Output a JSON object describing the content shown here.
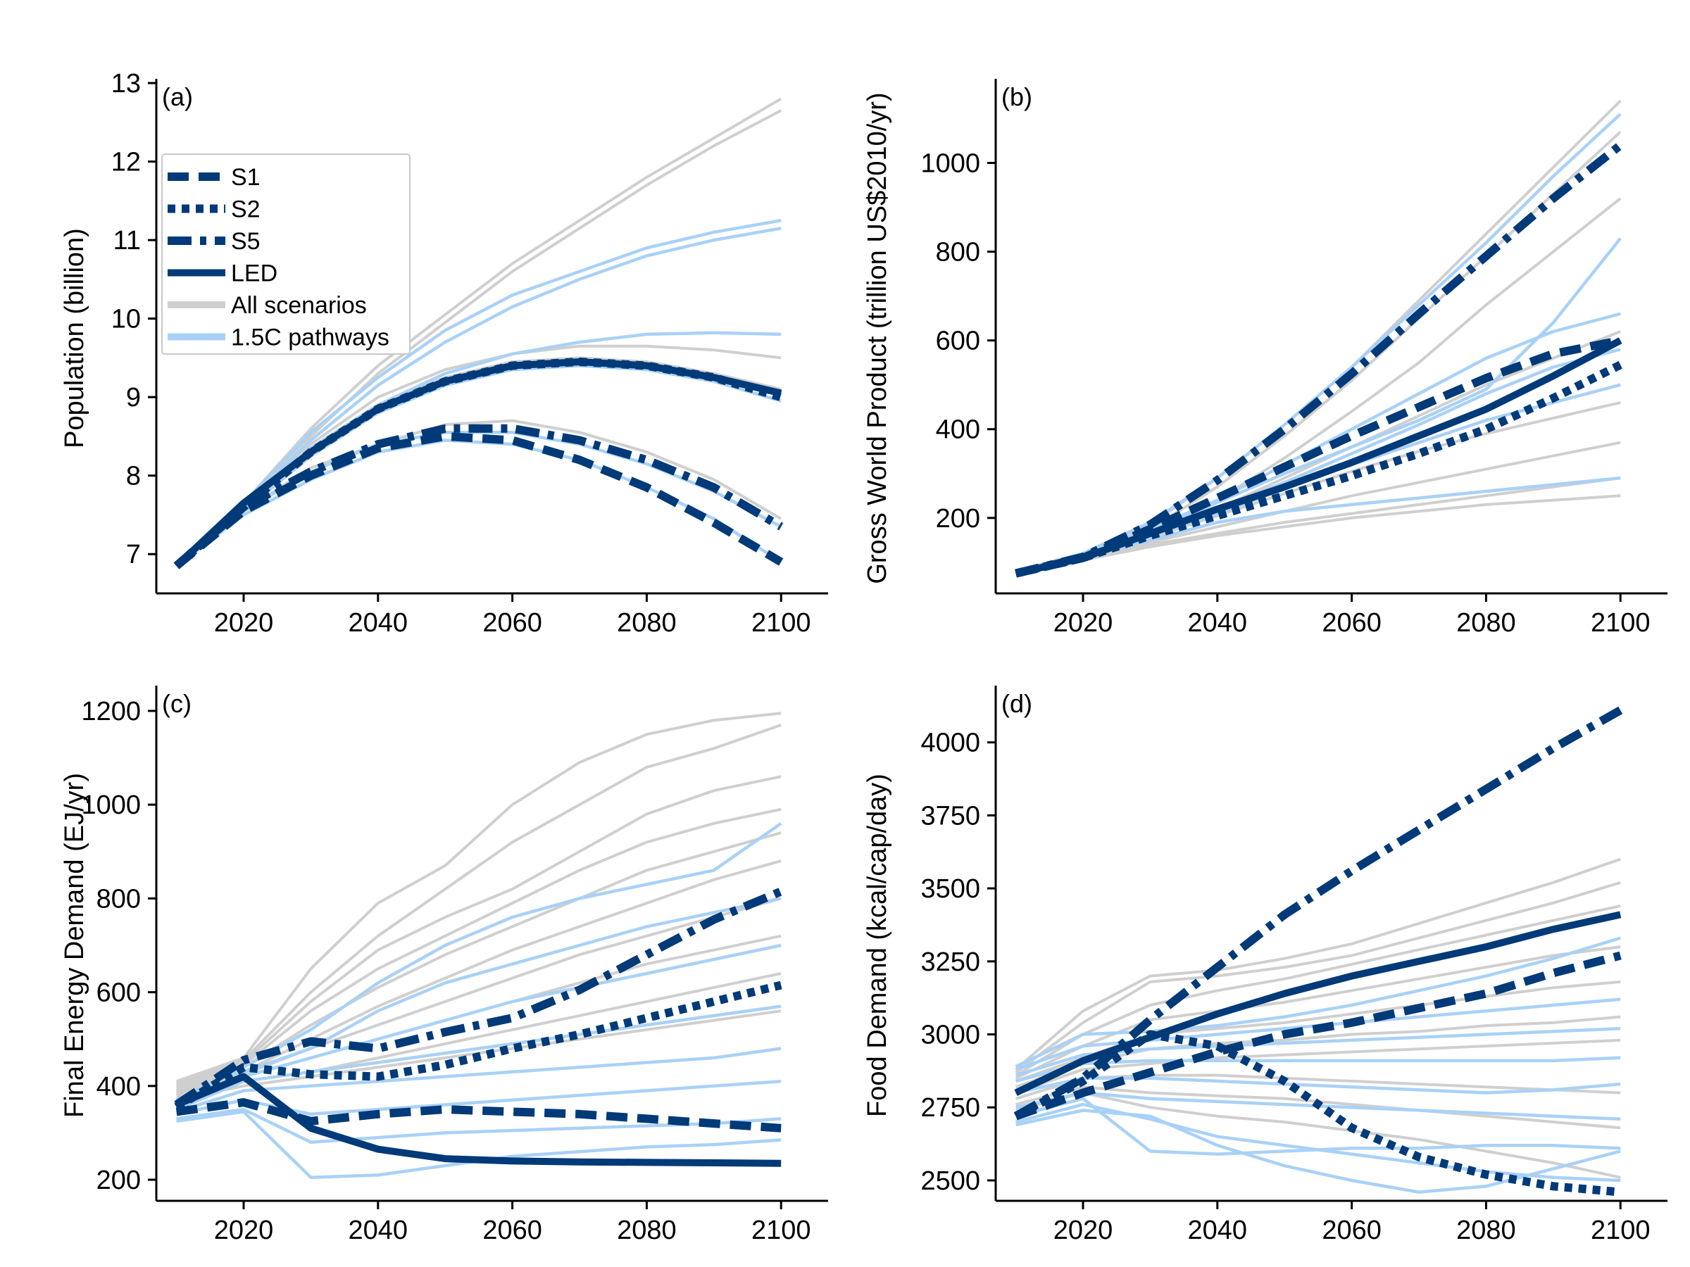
{
  "colors": {
    "grey": "#cfcfcf",
    "light_blue": "#a9d1f7",
    "navy": "#003a78"
  },
  "legend": [
    {
      "label": "S1",
      "style": "dashed"
    },
    {
      "label": "S2",
      "style": "dotted"
    },
    {
      "label": "S5",
      "style": "dashdot"
    },
    {
      "label": "LED",
      "style": "solid"
    },
    {
      "label": "All scenarios",
      "style": "grey"
    },
    {
      "label": "1.5C pathways",
      "style": "lightblue"
    }
  ],
  "chart_data": [
    {
      "type": "line",
      "panel_label": "(a)",
      "ylabel": "Population (billion)",
      "xlim": [
        2007,
        2107
      ],
      "ylim": [
        6.5,
        13.0
      ],
      "xticks": [
        2020,
        2040,
        2060,
        2080,
        2100
      ],
      "yticks": [
        7,
        8,
        9,
        10,
        11,
        12,
        13
      ],
      "x": [
        2010,
        2020,
        2030,
        2040,
        2050,
        2060,
        2070,
        2080,
        2090,
        2100
      ],
      "grey_series": [
        [
          6.85,
          7.65,
          8.6,
          9.4,
          10.05,
          10.7,
          11.25,
          11.8,
          12.3,
          12.8
        ],
        [
          6.85,
          7.6,
          8.5,
          9.3,
          9.95,
          10.6,
          11.15,
          11.7,
          12.2,
          12.65
        ],
        [
          6.85,
          7.6,
          8.4,
          9.0,
          9.35,
          9.55,
          9.65,
          9.65,
          9.6,
          9.5
        ],
        [
          6.85,
          7.6,
          8.35,
          8.9,
          9.25,
          9.45,
          9.5,
          9.45,
          9.3,
          9.1
        ],
        [
          6.85,
          7.55,
          8.1,
          8.4,
          8.65,
          8.7,
          8.55,
          8.3,
          7.95,
          7.45
        ]
      ],
      "blue_series": [
        [
          6.85,
          7.65,
          8.55,
          9.25,
          9.85,
          10.3,
          10.6,
          10.9,
          11.1,
          11.25
        ],
        [
          6.85,
          7.6,
          8.45,
          9.15,
          9.7,
          10.15,
          10.5,
          10.8,
          11.0,
          11.15
        ],
        [
          6.85,
          7.6,
          8.35,
          8.9,
          9.3,
          9.55,
          9.7,
          9.8,
          9.82,
          9.8
        ],
        [
          6.85,
          7.55,
          8.25,
          8.8,
          9.15,
          9.35,
          9.4,
          9.35,
          9.2,
          8.95
        ],
        [
          6.85,
          7.55,
          8.05,
          8.4,
          8.55,
          8.55,
          8.4,
          8.15,
          7.8,
          7.35
        ],
        [
          6.85,
          7.5,
          7.95,
          8.3,
          8.45,
          8.4,
          8.2,
          7.85,
          7.45,
          6.9
        ]
      ],
      "scenarios": [
        {
          "name": "S1",
          "style": "dashed",
          "values": [
            6.85,
            7.55,
            8.0,
            8.35,
            8.5,
            8.45,
            8.2,
            7.85,
            7.4,
            6.9
          ]
        },
        {
          "name": "S2",
          "style": "dotted",
          "values": [
            6.85,
            7.6,
            8.3,
            8.85,
            9.2,
            9.4,
            9.45,
            9.4,
            9.25,
            9.0
          ]
        },
        {
          "name": "S5",
          "style": "dashdot",
          "values": [
            6.85,
            7.6,
            8.05,
            8.4,
            8.6,
            8.6,
            8.45,
            8.2,
            7.85,
            7.35
          ]
        },
        {
          "name": "LED",
          "style": "solid",
          "values": [
            6.85,
            7.65,
            8.3,
            8.85,
            9.2,
            9.4,
            9.45,
            9.4,
            9.25,
            9.05
          ]
        }
      ]
    },
    {
      "type": "line",
      "panel_label": "(b)",
      "ylabel": "Gross World Product (trillion US$2010/yr)",
      "xlim": [
        2007,
        2107
      ],
      "ylim": [
        30,
        1180
      ],
      "xticks": [
        2020,
        2040,
        2060,
        2080,
        2100
      ],
      "yticks": [
        200,
        400,
        600,
        800,
        1000
      ],
      "x": [
        2010,
        2020,
        2030,
        2040,
        2050,
        2060,
        2070,
        2080,
        2090,
        2100
      ],
      "grey_series": [
        [
          75,
          115,
          185,
          290,
          410,
          540,
          690,
          840,
          990,
          1140
        ],
        [
          75,
          112,
          175,
          270,
          385,
          510,
          650,
          790,
          930,
          1070
        ],
        [
          75,
          110,
          165,
          240,
          335,
          440,
          550,
          680,
          800,
          920
        ],
        [
          75,
          110,
          160,
          220,
          290,
          360,
          430,
          500,
          560,
          620
        ],
        [
          75,
          110,
          155,
          205,
          255,
          305,
          350,
          390,
          425,
          460
        ],
        [
          75,
          108,
          145,
          180,
          215,
          250,
          280,
          310,
          340,
          370
        ],
        [
          75,
          105,
          140,
          165,
          190,
          210,
          230,
          250,
          270,
          290
        ],
        [
          75,
          105,
          135,
          160,
          180,
          200,
          215,
          230,
          240,
          250
        ]
      ],
      "blue_series": [
        [
          80,
          120,
          190,
          290,
          410,
          540,
          680,
          820,
          970,
          1110
        ],
        [
          80,
          115,
          170,
          235,
          300,
          360,
          420,
          490,
          640,
          830
        ],
        [
          80,
          115,
          175,
          240,
          320,
          400,
          480,
          560,
          620,
          660
        ],
        [
          80,
          112,
          160,
          210,
          265,
          320,
          370,
          420,
          460,
          500
        ],
        [
          80,
          110,
          150,
          190,
          215,
          230,
          245,
          260,
          275,
          290
        ],
        [
          80,
          112,
          165,
          220,
          280,
          345,
          410,
          480,
          540,
          580
        ]
      ],
      "scenarios": [
        {
          "name": "S1",
          "style": "dashed",
          "values": [
            75,
            110,
            175,
            245,
            315,
            385,
            450,
            515,
            570,
            600
          ]
        },
        {
          "name": "S2",
          "style": "dotted",
          "values": [
            75,
            110,
            160,
            205,
            250,
            295,
            345,
            400,
            470,
            545
          ]
        },
        {
          "name": "S5",
          "style": "dashdot",
          "values": [
            75,
            112,
            185,
            285,
            400,
            525,
            660,
            790,
            920,
            1040
          ]
        },
        {
          "name": "LED",
          "style": "solid",
          "values": [
            75,
            110,
            165,
            220,
            270,
            325,
            385,
            445,
            520,
            600
          ]
        }
      ]
    },
    {
      "type": "line",
      "panel_label": "(c)",
      "ylabel": "Final Energy Demand (EJ/yr)",
      "xlim": [
        2007,
        2107
      ],
      "ylim": [
        155,
        1245
      ],
      "xticks": [
        2020,
        2040,
        2060,
        2080,
        2100
      ],
      "yticks": [
        200,
        400,
        600,
        800,
        1000,
        1200
      ],
      "x": [
        2010,
        2020,
        2030,
        2040,
        2050,
        2060,
        2070,
        2080,
        2090,
        2100
      ],
      "grey_series": [
        [
          410,
          460,
          650,
          790,
          870,
          1000,
          1090,
          1150,
          1180,
          1195
        ],
        [
          405,
          455,
          600,
          720,
          820,
          920,
          1000,
          1080,
          1120,
          1170
        ],
        [
          400,
          450,
          580,
          690,
          760,
          820,
          900,
          980,
          1030,
          1060
        ],
        [
          395,
          445,
          560,
          650,
          720,
          790,
          860,
          920,
          960,
          990
        ],
        [
          390,
          440,
          530,
          610,
          680,
          740,
          800,
          860,
          900,
          940
        ],
        [
          390,
          430,
          500,
          570,
          630,
          690,
          740,
          790,
          840,
          880
        ],
        [
          385,
          425,
          480,
          530,
          580,
          630,
          680,
          720,
          760,
          800
        ],
        [
          380,
          420,
          460,
          500,
          540,
          580,
          620,
          660,
          690,
          720
        ],
        [
          375,
          410,
          430,
          460,
          490,
          520,
          550,
          580,
          610,
          640
        ],
        [
          370,
          400,
          420,
          440,
          460,
          480,
          500,
          520,
          540,
          560
        ]
      ],
      "blue_series": [
        [
          370,
          440,
          520,
          620,
          700,
          760,
          800,
          830,
          860,
          960
        ],
        [
          360,
          430,
          480,
          560,
          620,
          660,
          700,
          740,
          770,
          800
        ],
        [
          355,
          420,
          460,
          500,
          540,
          580,
          610,
          640,
          670,
          700
        ],
        [
          350,
          410,
          430,
          450,
          470,
          490,
          510,
          530,
          550,
          570
        ],
        [
          345,
          390,
          400,
          410,
          420,
          430,
          440,
          450,
          460,
          480
        ],
        [
          340,
          370,
          340,
          350,
          360,
          370,
          380,
          390,
          400,
          410
        ],
        [
          330,
          350,
          280,
          290,
          300,
          305,
          310,
          315,
          320,
          330
        ],
        [
          325,
          345,
          205,
          210,
          230,
          250,
          260,
          270,
          275,
          285
        ]
      ],
      "scenarios": [
        {
          "name": "S1",
          "style": "dashed",
          "values": [
            345,
            365,
            325,
            340,
            350,
            345,
            340,
            330,
            320,
            310
          ]
        },
        {
          "name": "S2",
          "style": "dotted",
          "values": [
            355,
            440,
            425,
            420,
            445,
            480,
            510,
            545,
            580,
            615
          ]
        },
        {
          "name": "S5",
          "style": "dashdot",
          "values": [
            360,
            455,
            495,
            480,
            515,
            545,
            605,
            680,
            755,
            815
          ]
        },
        {
          "name": "LED",
          "style": "solid",
          "values": [
            360,
            420,
            310,
            265,
            245,
            240,
            238,
            237,
            236,
            235
          ]
        }
      ]
    },
    {
      "type": "line",
      "panel_label": "(d)",
      "ylabel": "Food Demand (kcal/cap/day)",
      "xlim": [
        2007,
        2107
      ],
      "ylim": [
        2430,
        4180
      ],
      "xticks": [
        2020,
        2040,
        2060,
        2080,
        2100
      ],
      "yticks": [
        2500,
        2750,
        3000,
        3250,
        3500,
        3750,
        4000
      ],
      "x": [
        2010,
        2020,
        2030,
        2040,
        2050,
        2060,
        2070,
        2080,
        2090,
        2100
      ],
      "grey_series": [
        [
          2880,
          3080,
          3200,
          3220,
          3260,
          3310,
          3380,
          3450,
          3520,
          3600
        ],
        [
          2870,
          3040,
          3180,
          3200,
          3230,
          3270,
          3330,
          3390,
          3450,
          3520
        ],
        [
          2860,
          3000,
          3100,
          3150,
          3190,
          3240,
          3290,
          3340,
          3390,
          3440
        ],
        [
          2850,
          2960,
          3050,
          3080,
          3110,
          3150,
          3190,
          3230,
          3270,
          3300
        ],
        [
          2840,
          2920,
          3000,
          3020,
          3040,
          3070,
          3100,
          3130,
          3160,
          3180
        ],
        [
          2820,
          2900,
          2950,
          2970,
          2980,
          3000,
          3010,
          3030,
          3040,
          3060
        ],
        [
          2800,
          2880,
          2900,
          2920,
          2930,
          2940,
          2950,
          2960,
          2970,
          2980
        ],
        [
          2780,
          2850,
          2860,
          2860,
          2850,
          2840,
          2830,
          2820,
          2810,
          2800
        ],
        [
          2760,
          2820,
          2800,
          2790,
          2780,
          2760,
          2740,
          2720,
          2700,
          2680
        ],
        [
          2740,
          2800,
          2750,
          2720,
          2700,
          2670,
          2640,
          2600,
          2560,
          2510
        ]
      ],
      "blue_series": [
        [
          2890,
          3000,
          3010,
          3030,
          3060,
          3100,
          3150,
          3200,
          3260,
          3330
        ],
        [
          2880,
          2960,
          2980,
          3000,
          3020,
          3040,
          3060,
          3080,
          3100,
          3120
        ],
        [
          2860,
          2930,
          2950,
          2960,
          2970,
          2980,
          2990,
          3000,
          3010,
          3020
        ],
        [
          2840,
          2900,
          2910,
          2910,
          2910,
          2910,
          2910,
          2910,
          2910,
          2920
        ],
        [
          2800,
          2850,
          2850,
          2840,
          2830,
          2820,
          2810,
          2800,
          2810,
          2830
        ],
        [
          2750,
          2800,
          2780,
          2770,
          2760,
          2750,
          2740,
          2730,
          2720,
          2710
        ],
        [
          2720,
          2780,
          2600,
          2590,
          2600,
          2610,
          2610,
          2620,
          2620,
          2610
        ],
        [
          2700,
          2760,
          2710,
          2650,
          2620,
          2590,
          2560,
          2530,
          2510,
          2500
        ],
        [
          2690,
          2740,
          2720,
          2620,
          2550,
          2500,
          2460,
          2480,
          2540,
          2600
        ]
      ],
      "scenarios": [
        {
          "name": "S1",
          "style": "dashed",
          "values": [
            2720,
            2800,
            2870,
            2940,
            3000,
            3040,
            3090,
            3140,
            3210,
            3270
          ]
        },
        {
          "name": "S2",
          "style": "dotted",
          "values": [
            2720,
            2840,
            3000,
            2960,
            2840,
            2680,
            2580,
            2520,
            2480,
            2460
          ]
        },
        {
          "name": "S5",
          "style": "dashdot",
          "values": [
            2720,
            2850,
            3050,
            3230,
            3410,
            3560,
            3700,
            3840,
            3980,
            4110
          ]
        },
        {
          "name": "LED",
          "style": "solid",
          "values": [
            2800,
            2910,
            2990,
            3070,
            3140,
            3200,
            3250,
            3300,
            3360,
            3410
          ]
        }
      ]
    }
  ]
}
